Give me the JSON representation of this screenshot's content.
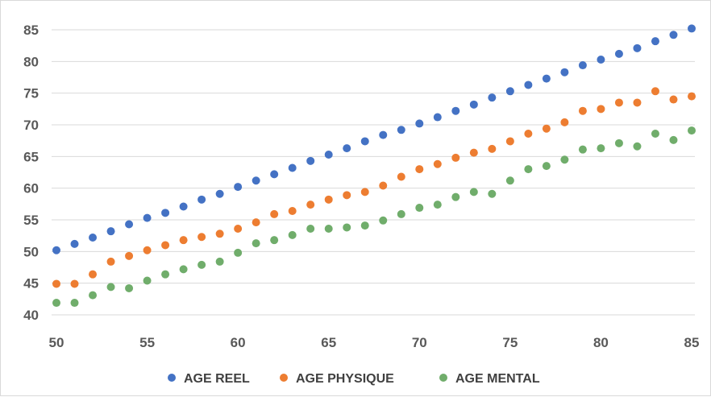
{
  "chart_data": {
    "type": "scatter",
    "title": "",
    "xlabel": "",
    "ylabel": "",
    "xlim": [
      50,
      85
    ],
    "ylim": [
      40,
      85
    ],
    "x_ticks": [
      "50",
      "55",
      "60",
      "65",
      "70",
      "75",
      "80",
      "85"
    ],
    "y_ticks": [
      "40",
      "45",
      "50",
      "55",
      "60",
      "65",
      "70",
      "75",
      "80",
      "85"
    ],
    "grid": "horizontal",
    "legend_position": "bottom",
    "x": [
      50,
      51,
      52,
      53,
      54,
      55,
      56,
      57,
      58,
      59,
      60,
      61,
      62,
      63,
      64,
      65,
      66,
      67,
      68,
      69,
      70,
      71,
      72,
      73,
      74,
      75,
      76,
      77,
      78,
      79,
      80,
      81,
      82,
      83,
      84,
      85
    ],
    "series": [
      {
        "name": "AGE REEL",
        "color": "#4472C4",
        "values": [
          50.2,
          51.2,
          52.2,
          53.2,
          54.3,
          55.3,
          56.1,
          57.1,
          58.2,
          59.1,
          60.2,
          61.2,
          62.2,
          63.2,
          64.3,
          65.3,
          66.3,
          67.4,
          68.4,
          69.2,
          70.2,
          71.2,
          72.2,
          73.2,
          74.3,
          75.3,
          76.3,
          77.3,
          78.3,
          79.4,
          80.3,
          81.2,
          82.1,
          83.2,
          84.2,
          85.2
        ]
      },
      {
        "name": "AGE PHYSIQUE",
        "color": "#ED7D31",
        "values": [
          44.9,
          44.9,
          46.4,
          48.4,
          49.3,
          50.2,
          51.0,
          51.8,
          52.3,
          52.8,
          53.6,
          54.6,
          55.9,
          56.4,
          57.4,
          58.2,
          58.9,
          59.4,
          60.4,
          61.8,
          63.0,
          63.8,
          64.8,
          65.6,
          66.2,
          67.4,
          68.6,
          69.4,
          70.4,
          72.2,
          72.5,
          73.5,
          73.5,
          75.3,
          74.0,
          74.5
        ]
      },
      {
        "name": "AGE MENTAL",
        "color": "#70AD6B",
        "values": [
          41.9,
          41.9,
          43.1,
          44.4,
          44.2,
          45.4,
          46.4,
          47.2,
          47.9,
          48.4,
          49.8,
          51.3,
          51.8,
          52.6,
          53.6,
          53.6,
          53.8,
          54.1,
          54.9,
          55.9,
          56.9,
          57.4,
          58.6,
          59.4,
          59.1,
          61.2,
          63.0,
          63.5,
          64.5,
          66.1,
          66.3,
          67.1,
          66.6,
          68.6,
          67.6,
          69.1
        ]
      }
    ]
  }
}
